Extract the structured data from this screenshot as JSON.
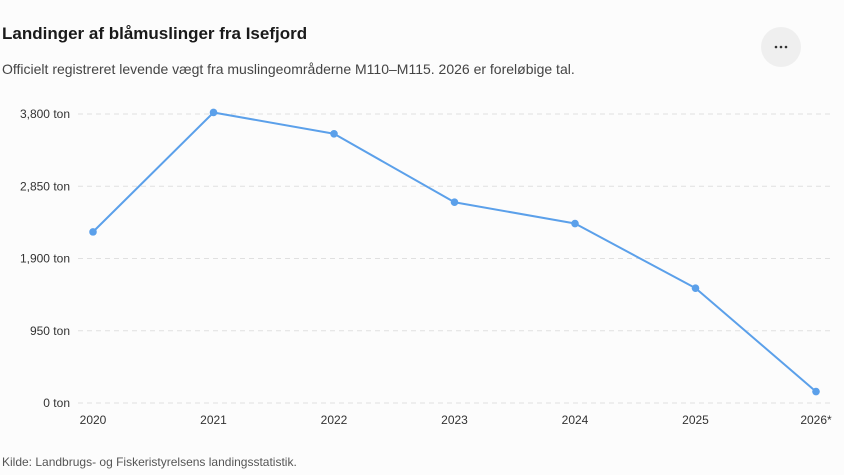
{
  "header": {
    "title": "Landinger af blåmuslinger fra Isefjord",
    "subtitle": "Officielt registreret levende vægt fra muslingeområderne M110–M115. 2026 er foreløbige tal.",
    "menu_icon": "more-horizontal-icon"
  },
  "footer": {
    "source": "Kilde: Landbrugs- og Fiskeristyrelsens landingsstatistik."
  },
  "colors": {
    "line": "#5ba0ea",
    "grid": "#e0e0e0",
    "menu_bg": "#efefef"
  },
  "chart_data": {
    "type": "line",
    "title": "Landinger af blåmuslinger fra Isefjord",
    "subtitle": "Officielt registreret levende vægt fra muslingeområderne M110–M115. 2026 er foreløbige tal.",
    "categories": [
      "2020",
      "2021",
      "2022",
      "2023",
      "2024",
      "2025",
      "2026*"
    ],
    "series": [
      {
        "values": [
          2250,
          3820,
          3540,
          2640,
          2360,
          1510,
          150
        ]
      }
    ],
    "y_ticks": [
      0,
      950,
      1900,
      2850,
      3800
    ],
    "y_tick_labels": [
      "0 ton",
      "950 ton",
      "1,900 ton",
      "2,850 ton",
      "3,800 ton"
    ],
    "ylim": [
      0,
      3800
    ],
    "xlabel": "",
    "ylabel": "",
    "grid": true,
    "legend": "none"
  }
}
